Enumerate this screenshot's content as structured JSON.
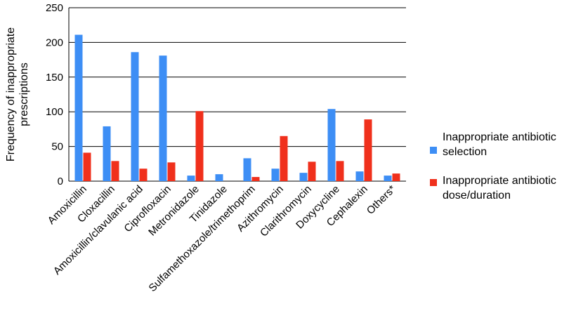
{
  "chart_data": {
    "type": "bar",
    "title": "",
    "xlabel": "",
    "ylabel_lines": [
      "Frequency of inappropriate",
      "prescriptions"
    ],
    "ylim": [
      0,
      250
    ],
    "yticks": [
      0,
      50,
      100,
      150,
      200,
      250
    ],
    "grid": true,
    "legend_position": "right",
    "categories": [
      "Amoxicillin",
      "Cloxacillin",
      "Amoxicillin/clavulanic acid",
      "Ciprofloxacin",
      "Metronidazole",
      "Tinidazole",
      "Sulfamethoxazole/trimethoprim",
      "Azithromycin",
      "Clarithromycin",
      "Doxycycline",
      "Cephalexin",
      "Others*"
    ],
    "series": [
      {
        "name_lines": [
          "Inappropriate antibiotic",
          "selection"
        ],
        "color": "#3d8ef5",
        "values": [
          211,
          79,
          186,
          181,
          8,
          10,
          33,
          18,
          12,
          104,
          14,
          8
        ]
      },
      {
        "name_lines": [
          "Inappropriate antibiotic",
          "dose/duration"
        ],
        "color": "#f0301c",
        "values": [
          41,
          29,
          18,
          27,
          101,
          0,
          6,
          65,
          28,
          29,
          89,
          11
        ]
      }
    ]
  }
}
